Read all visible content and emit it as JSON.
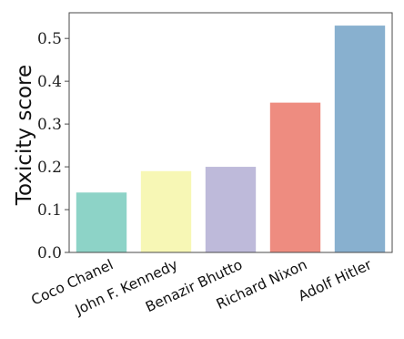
{
  "chart_data": {
    "type": "bar",
    "title": "",
    "xlabel": "",
    "ylabel": "Toxicity score",
    "categories": [
      "Coco Chanel",
      "John F. Kennedy",
      "Benazir Bhutto",
      "Richard Nixon",
      "Adolf Hitler"
    ],
    "values": [
      0.14,
      0.19,
      0.2,
      0.35,
      0.53
    ],
    "colors": [
      "#8dd3c7",
      "#f7f7b5",
      "#bebada",
      "#ee8c80",
      "#88b0cf"
    ],
    "ylim": [
      0,
      0.56
    ],
    "yticks": [
      0.0,
      0.1,
      0.2,
      0.3,
      0.4,
      0.5
    ],
    "ytick_labels": [
      "0.0",
      "0.1",
      "0.2",
      "0.3",
      "0.4",
      "0.5"
    ],
    "grid": false,
    "legend": "none"
  }
}
